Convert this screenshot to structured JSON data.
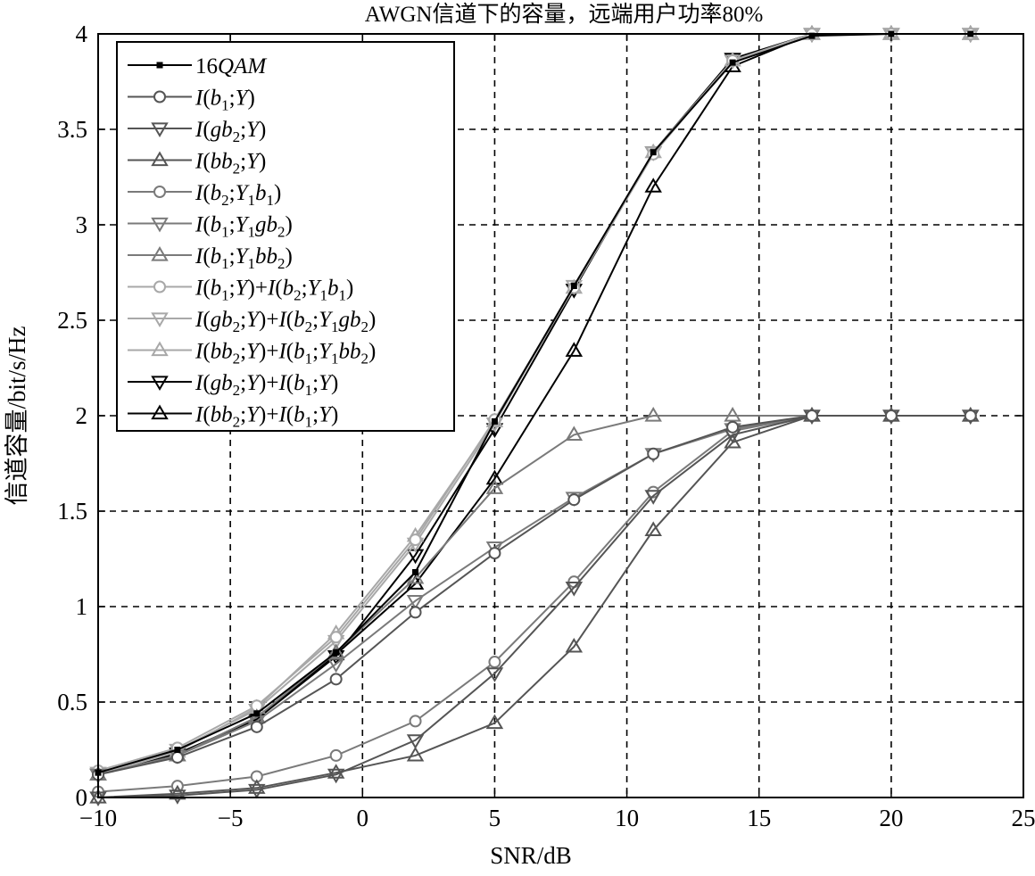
{
  "chart_data": {
    "type": "line",
    "title": "AWGN信道下的容量，远端用户功率80%",
    "xlabel": "SNR/dB",
    "ylabel": "信道容量/bit/s/Hz",
    "xlim": [
      -10,
      25
    ],
    "ylim": [
      0,
      4
    ],
    "xticks": [
      -10,
      -5,
      0,
      5,
      10,
      15,
      20,
      25
    ],
    "xtick_labels": [
      "−10",
      "−5",
      "0",
      "5",
      "10",
      "15",
      "20",
      "25"
    ],
    "yticks": [
      0,
      0.5,
      1,
      1.5,
      2,
      2.5,
      3,
      3.5,
      4
    ],
    "ytick_labels": [
      "0",
      "0.5",
      "1",
      "1.5",
      "2",
      "2.5",
      "3",
      "3.5",
      "4"
    ],
    "grid": true,
    "legend_position": "top-left",
    "x": [
      -10,
      -7,
      -4,
      -1,
      2,
      5,
      8,
      11,
      14,
      17,
      20,
      23
    ],
    "series": [
      {
        "name": "16QAM",
        "legend": [
          "16",
          {
            "i": "QAM"
          }
        ],
        "color": "#000000",
        "marker": "dot",
        "values": [
          0.13,
          0.25,
          0.44,
          0.76,
          1.18,
          1.97,
          2.68,
          3.38,
          3.85,
          3.99,
          4.0,
          4.0
        ]
      },
      {
        "name": "I(b1;Y)",
        "legend": [
          {
            "i": "I"
          },
          "(",
          {
            "i": "b"
          },
          {
            "sub": "1"
          },
          ";",
          {
            "i": "Y"
          },
          ")"
        ],
        "color": "#555555",
        "marker": "circle",
        "values": [
          0.12,
          0.21,
          0.37,
          0.62,
          0.97,
          1.28,
          1.56,
          1.8,
          1.94,
          2.0,
          2.0,
          2.0
        ]
      },
      {
        "name": "I(gb2;Y)",
        "legend": [
          {
            "i": "I"
          },
          "(",
          {
            "i": "gb"
          },
          {
            "sub": "2"
          },
          ";",
          {
            "i": "Y"
          },
          ")"
        ],
        "color": "#555555",
        "marker": "tri-down",
        "values": [
          0.0,
          0.01,
          0.04,
          0.12,
          0.3,
          0.65,
          1.1,
          1.58,
          1.9,
          2.0,
          2.0,
          2.0
        ]
      },
      {
        "name": "I(bb2;Y)",
        "legend": [
          {
            "i": "I"
          },
          "(",
          {
            "i": "bb"
          },
          {
            "sub": "2"
          },
          ";",
          {
            "i": "Y"
          },
          ")"
        ],
        "color": "#555555",
        "marker": "tri-up",
        "values": [
          0.0,
          0.02,
          0.05,
          0.13,
          0.22,
          0.39,
          0.79,
          1.4,
          1.86,
          2.0,
          2.0,
          2.0
        ]
      },
      {
        "name": "I(b2;Y1b1)",
        "legend": [
          {
            "i": "I"
          },
          "(",
          {
            "i": "b"
          },
          {
            "sub": "2"
          },
          ";",
          {
            "i": "Y"
          },
          {
            "sub": "1"
          },
          {
            "i": "b"
          },
          {
            "sub": "1"
          },
          ")"
        ],
        "color": "#7a7a7a",
        "marker": "circle",
        "values": [
          0.03,
          0.06,
          0.11,
          0.22,
          0.4,
          0.71,
          1.13,
          1.6,
          1.92,
          2.0,
          2.0,
          2.0
        ]
      },
      {
        "name": "I(b1;Y1gb2)",
        "legend": [
          {
            "i": "I"
          },
          "(",
          {
            "i": "b"
          },
          {
            "sub": "1"
          },
          ";",
          {
            "i": "Y"
          },
          {
            "sub": "1"
          },
          {
            "i": "gb"
          },
          {
            "sub": "2"
          },
          ")"
        ],
        "color": "#7a7a7a",
        "marker": "tri-down",
        "values": [
          0.12,
          0.22,
          0.4,
          0.7,
          1.03,
          1.31,
          1.57,
          1.8,
          1.93,
          2.0,
          2.0,
          2.0
        ]
      },
      {
        "name": "I(b1;Y1bb2)",
        "legend": [
          {
            "i": "I"
          },
          "(",
          {
            "i": "b"
          },
          {
            "sub": "1"
          },
          ";",
          {
            "i": "Y"
          },
          {
            "sub": "1"
          },
          {
            "i": "bb"
          },
          {
            "sub": "2"
          },
          ")"
        ],
        "color": "#7a7a7a",
        "marker": "tri-up",
        "values": [
          0.12,
          0.22,
          0.42,
          0.76,
          1.15,
          1.62,
          1.9,
          2.0,
          2.0,
          2.0,
          2.0,
          2.0
        ]
      },
      {
        "name": "I(b1;Y)+I(b2;Y1b1)",
        "legend": [
          {
            "i": "I"
          },
          "(",
          {
            "i": "b"
          },
          {
            "sub": "1"
          },
          ";",
          {
            "i": "Y"
          },
          ")+",
          {
            "i": "I"
          },
          "(",
          {
            "i": "b"
          },
          {
            "sub": "2"
          },
          ";",
          {
            "i": "Y"
          },
          {
            "sub": "1"
          },
          {
            "i": "b"
          },
          {
            "sub": "1"
          },
          ")"
        ],
        "color": "#a8a8a8",
        "marker": "circle",
        "values": [
          0.14,
          0.26,
          0.48,
          0.84,
          1.35,
          1.98,
          2.67,
          3.37,
          3.86,
          4.0,
          4.0,
          4.0
        ]
      },
      {
        "name": "I(gb2;Y)+I(b2;Y1gb2)",
        "legend": [
          {
            "i": "I"
          },
          "(",
          {
            "i": "gb"
          },
          {
            "sub": "2"
          },
          ";",
          {
            "i": "Y"
          },
          ")+",
          {
            "i": "I"
          },
          "(",
          {
            "i": "b"
          },
          {
            "sub": "2"
          },
          ";",
          {
            "i": "Y"
          },
          {
            "sub": "1"
          },
          {
            "i": "gb"
          },
          {
            "sub": "2"
          },
          ")"
        ],
        "color": "#a8a8a8",
        "marker": "tri-down",
        "values": [
          0.13,
          0.25,
          0.46,
          0.82,
          1.33,
          1.96,
          2.68,
          3.38,
          3.86,
          4.0,
          4.0,
          4.0
        ]
      },
      {
        "name": "I(bb2;Y)+I(b1;Y1bb2)",
        "legend": [
          {
            "i": "I"
          },
          "(",
          {
            "i": "bb"
          },
          {
            "sub": "2"
          },
          ";",
          {
            "i": "Y"
          },
          ")+",
          {
            "i": "I"
          },
          "(",
          {
            "i": "b"
          },
          {
            "sub": "1"
          },
          ";",
          {
            "i": "Y"
          },
          {
            "sub": "1"
          },
          {
            "i": "bb"
          },
          {
            "sub": "2"
          },
          ")"
        ],
        "color": "#a8a8a8",
        "marker": "tri-up",
        "values": [
          0.12,
          0.24,
          0.47,
          0.86,
          1.37,
          1.97,
          2.67,
          3.38,
          3.86,
          4.0,
          4.0,
          4.0
        ]
      },
      {
        "name": "I(gb2;Y)+I(b1;Y)",
        "legend": [
          {
            "i": "I"
          },
          "(",
          {
            "i": "gb"
          },
          {
            "sub": "2"
          },
          ";",
          {
            "i": "Y"
          },
          ")+",
          {
            "i": "I"
          },
          "(",
          {
            "i": "b"
          },
          {
            "sub": "1"
          },
          ";",
          {
            "i": "Y"
          },
          ")"
        ],
        "color": "#000000",
        "marker": "tri-down",
        "values": [
          0.12,
          0.23,
          0.41,
          0.74,
          1.27,
          1.93,
          2.66,
          3.38,
          3.87,
          4.0,
          4.0,
          4.0
        ]
      },
      {
        "name": "I(bb2;Y)+I(b1;Y)",
        "legend": [
          {
            "i": "I"
          },
          "(",
          {
            "i": "bb"
          },
          {
            "sub": "2"
          },
          ";",
          {
            "i": "Y"
          },
          ")+",
          {
            "i": "I"
          },
          "(",
          {
            "i": "b"
          },
          {
            "sub": "1"
          },
          ";",
          {
            "i": "Y"
          },
          ")"
        ],
        "color": "#000000",
        "marker": "tri-up",
        "values": [
          0.12,
          0.22,
          0.42,
          0.75,
          1.12,
          1.67,
          2.34,
          3.2,
          3.83,
          4.0,
          4.0,
          4.0
        ]
      }
    ]
  }
}
